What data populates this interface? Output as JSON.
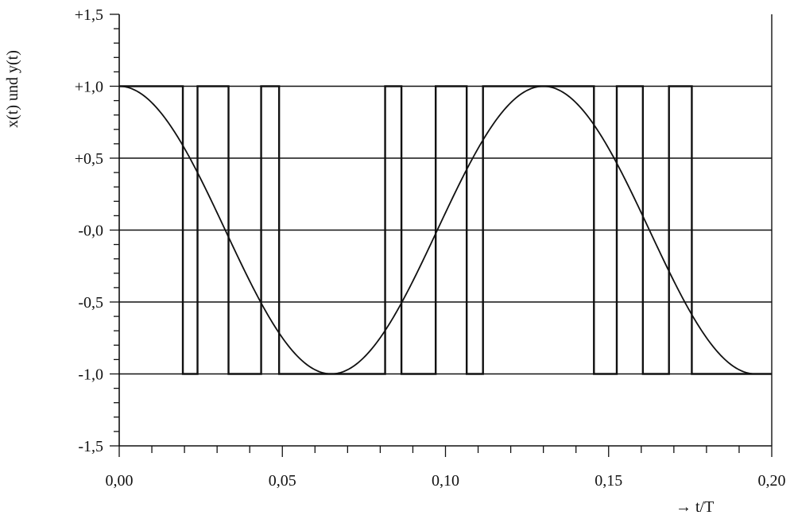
{
  "chart_data": {
    "type": "line",
    "title": "",
    "xlabel": "→ t/T",
    "ylabel": "x(t) und y(t)",
    "xlim": [
      0,
      0.2
    ],
    "ylim": [
      -1.5,
      1.5
    ],
    "grid": "horizontal",
    "x_ticks": [
      {
        "value": 0.0,
        "label": "0,00"
      },
      {
        "value": 0.05,
        "label": "0,05"
      },
      {
        "value": 0.1,
        "label": "0,10"
      },
      {
        "value": 0.15,
        "label": "0,15"
      },
      {
        "value": 0.2,
        "label": "0,20"
      }
    ],
    "y_ticks": [
      {
        "value": 1.5,
        "label": "+1,5"
      },
      {
        "value": 1.0,
        "label": "+1,0"
      },
      {
        "value": 0.5,
        "label": "+0,5"
      },
      {
        "value": 0.0,
        "label": "-0,0"
      },
      {
        "value": -0.5,
        "label": "-0,5"
      },
      {
        "value": -1.0,
        "label": "-1,0"
      },
      {
        "value": -1.5,
        "label": "-1,5"
      }
    ],
    "gridlines_y": [
      1.0,
      0.5,
      0.0,
      -0.5,
      -1.0
    ],
    "series": [
      {
        "kind": "cosine",
        "description_formula": "x(t) = cos(2π f t) for t ≤ 0.195, then -1",
        "period": 0.13,
        "x": [
          0,
          0.005,
          0.01,
          0.015,
          0.02,
          0.025,
          0.03,
          0.035,
          0.04,
          0.045,
          0.05,
          0.055,
          0.06,
          0.065,
          0.07,
          0.075,
          0.08,
          0.085,
          0.09,
          0.095,
          0.1,
          0.105,
          0.11,
          0.115,
          0.12,
          0.125,
          0.13,
          0.135,
          0.14,
          0.145,
          0.15,
          0.155,
          0.16,
          0.165,
          0.17,
          0.175,
          0.18,
          0.185,
          0.19,
          0.195,
          0.2
        ],
        "y": [
          1.0,
          0.97,
          0.885,
          0.749,
          0.568,
          0.355,
          0.121,
          -0.121,
          -0.355,
          -0.568,
          -0.749,
          -0.885,
          -0.97,
          -1.0,
          -0.97,
          -0.885,
          -0.749,
          -0.568,
          -0.355,
          -0.121,
          0.121,
          0.355,
          0.568,
          0.749,
          0.885,
          0.97,
          1.0,
          0.97,
          0.885,
          0.749,
          0.568,
          0.355,
          0.121,
          -0.121,
          -0.355,
          -0.568,
          -0.749,
          -0.885,
          -0.97,
          -1.0,
          -1.0
        ]
      },
      {
        "kind": "step",
        "transitions_x": [
          0.0,
          0.0195,
          0.024,
          0.0335,
          0.0435,
          0.049,
          0.0815,
          0.0865,
          0.097,
          0.1065,
          0.1115,
          0.1455,
          0.1525,
          0.1605,
          0.1685,
          0.1755,
          0.2
        ],
        "levels": [
          1,
          -1,
          1,
          -1,
          1,
          -1,
          1,
          -1,
          1,
          -1,
          1,
          -1,
          1,
          -1,
          1,
          -1
        ]
      }
    ]
  }
}
